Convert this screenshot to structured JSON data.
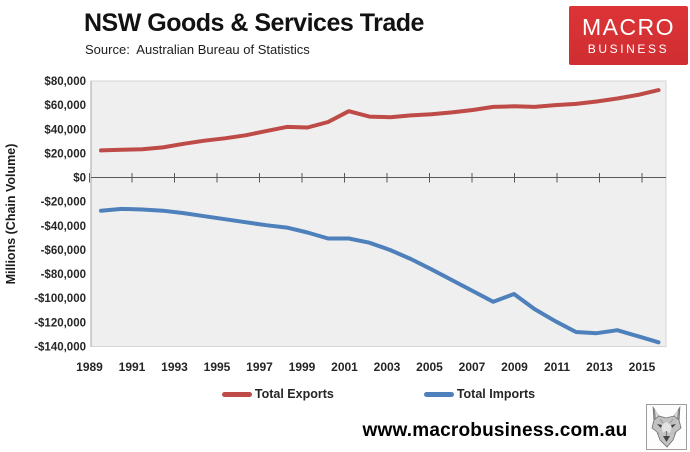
{
  "header": {
    "title": "NSW Goods & Services Trade",
    "source": "Source:  Australian Bureau of Statistics"
  },
  "logo": {
    "line1": "MACRO",
    "line2": "BUSINESS",
    "bg_color": "#dd3436"
  },
  "legend": {
    "items": [
      {
        "label": "Total Exports",
        "color": "#BE4B48"
      },
      {
        "label": "Total Imports",
        "color": "#4E80BC"
      }
    ]
  },
  "footer": {
    "url": "www.macrobusiness.com.au",
    "wolf_icon": "wolf-logo"
  },
  "chart_data": {
    "type": "line",
    "title": "NSW Goods & Services Trade",
    "source": "Source: Australian Bureau of Statistics",
    "ylabel": "Millions (Chain Volume)",
    "ylim": [
      -140000,
      80000
    ],
    "y_tick_step": 20000,
    "y_tick_labels": [
      "$80,000",
      "$60,000",
      "$40,000",
      "$20,000",
      "$0",
      "-$20,000",
      "-$40,000",
      "-$60,000",
      "-$80,000",
      "-$100,000",
      "-$120,000",
      "-$140,000"
    ],
    "x_tick_labels": [
      "1989",
      "1991",
      "1993",
      "1995",
      "1997",
      "1999",
      "2001",
      "2003",
      "2005",
      "2007",
      "2009",
      "2011",
      "2013",
      "2015"
    ],
    "grid": false,
    "legend_position": "bottom",
    "plot_bg": "#EFEFEF",
    "zero_axis_color": "#595959",
    "years": [
      1989,
      1990,
      1991,
      1992,
      1993,
      1994,
      1995,
      1996,
      1997,
      1998,
      1999,
      2000,
      2001,
      2002,
      2003,
      2004,
      2005,
      2006,
      2007,
      2008,
      2009,
      2010,
      2011,
      2012,
      2013,
      2014,
      2015,
      2016
    ],
    "series": [
      {
        "name": "Total Exports",
        "color": "#BE4B48",
        "values": [
          22500,
          23000,
          23500,
          25000,
          28000,
          30500,
          32500,
          35000,
          38500,
          42000,
          41500,
          46000,
          55000,
          50500,
          50000,
          51500,
          52500,
          54000,
          56000,
          58500,
          59000,
          58500,
          60000,
          61000,
          63000,
          65500,
          68500,
          72500
        ]
      },
      {
        "name": "Total Imports",
        "color": "#4E80BC",
        "values": [
          -27500,
          -26000,
          -26500,
          -27500,
          -29500,
          -32000,
          -34500,
          -37000,
          -39500,
          -41500,
          -45500,
          -50500,
          -50500,
          -54000,
          -60000,
          -67500,
          -76000,
          -85000,
          -94000,
          -103000,
          -96500,
          -109000,
          -119000,
          -128000,
          -129000,
          -126500,
          -131500,
          -136500
        ]
      }
    ]
  }
}
